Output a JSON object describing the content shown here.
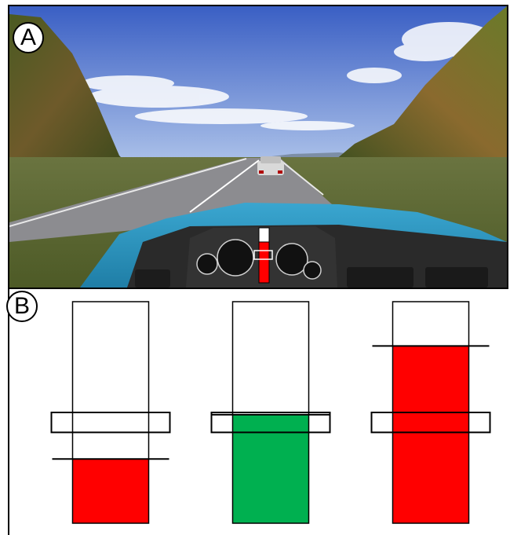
{
  "panels": {
    "a": {
      "label": "A"
    },
    "b": {
      "label": "B"
    }
  },
  "colors": {
    "sky_top": "#3c63c8",
    "sky_bottom": "#9fb7e6",
    "grass": "#5e6e30",
    "road": "#8a8a8e",
    "car_body": "#2a8fb8",
    "dashboard": "#2b2b2b",
    "bar_red": "#ff0000",
    "bar_green": "#00b050"
  },
  "indicators": [
    {
      "id": "left",
      "fill_color": "red",
      "fill_level": 0.29,
      "threshold_level": 0.29,
      "target_band": [
        0.41,
        0.5
      ]
    },
    {
      "id": "middle",
      "fill_color": "green",
      "fill_level": 0.49,
      "threshold_level": 0.49,
      "target_band": [
        0.41,
        0.5
      ]
    },
    {
      "id": "right",
      "fill_color": "red",
      "fill_level": 0.8,
      "threshold_level": 0.8,
      "target_band": [
        0.41,
        0.5
      ]
    }
  ]
}
